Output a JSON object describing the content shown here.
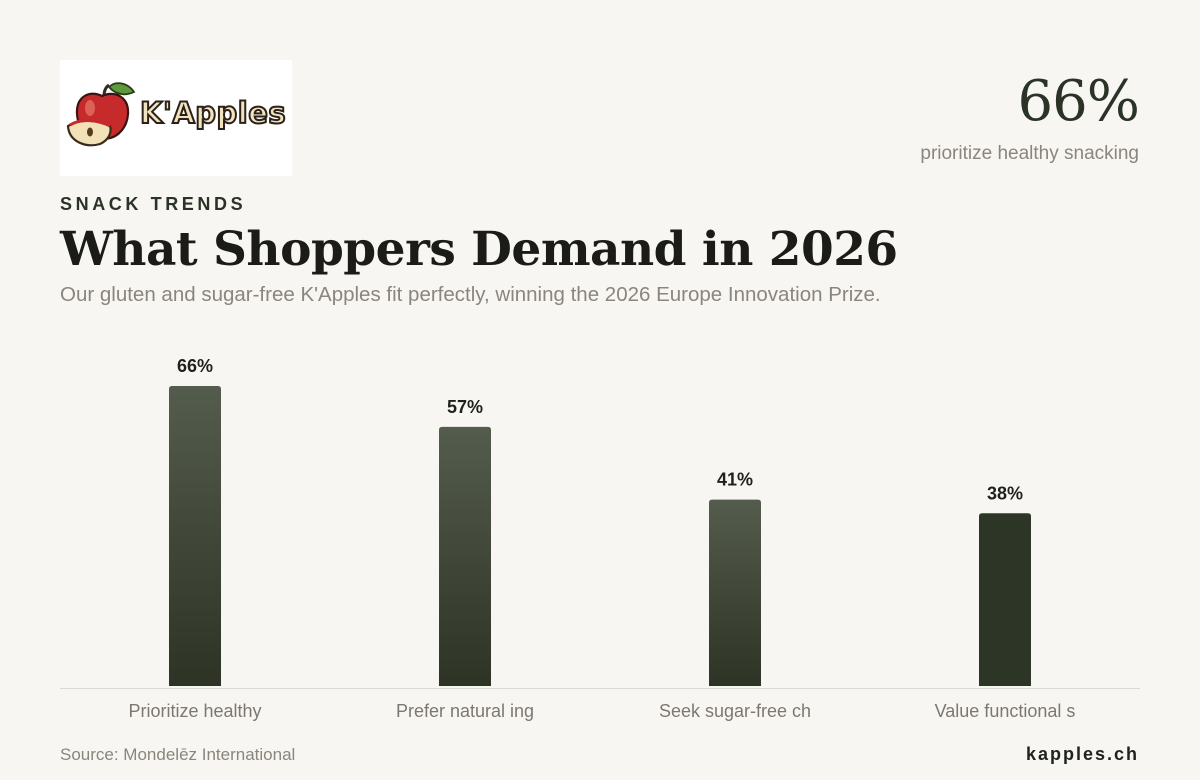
{
  "brand": {
    "logo_text": "K'Apples",
    "site": "kapples.ch"
  },
  "stat": {
    "value": "66%",
    "caption": "prioritize healthy snacking"
  },
  "header": {
    "eyebrow": "SNACK TRENDS",
    "title": "What Shoppers Demand in 2026",
    "subtitle": "Our gluten and sugar-free K'Apples fit perfectly, winning the 2026 Europe Innovation Prize."
  },
  "footer": {
    "source": "Source: Mondelēz International"
  },
  "colors": {
    "bar_top": "#545c4d",
    "bar_bottom": "#2d3325",
    "bar_last": "#2c3526",
    "axis": "#dcd9d3",
    "background": "#f8f6f2"
  },
  "chart_data": {
    "type": "bar",
    "categories": [
      "Prioritize healthy",
      "Prefer natural ing",
      "Seek sugar-free ch",
      "Value functional s"
    ],
    "values": [
      66,
      57,
      41,
      38
    ],
    "value_labels": [
      "66%",
      "57%",
      "41%",
      "38%"
    ],
    "title": "What Shoppers Demand in 2026",
    "xlabel": "",
    "ylabel": "",
    "ylim": [
      0,
      66
    ],
    "grid": false
  }
}
